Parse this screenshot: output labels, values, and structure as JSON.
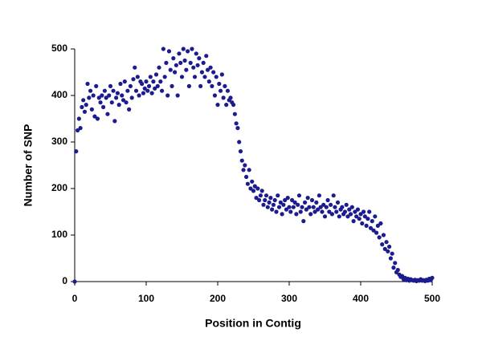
{
  "chart_data": {
    "type": "scatter",
    "x_label": "Position in Contig",
    "y_label": "Number of SNP",
    "xlim": [
      0,
      500
    ],
    "xticks": [
      0,
      100,
      200,
      300,
      400,
      500
    ],
    "ylim": [
      0,
      500
    ],
    "yticks": [
      0,
      100,
      200,
      300,
      400,
      500
    ],
    "color": "#1c1c8f",
    "x": [
      0,
      2,
      4,
      6,
      8,
      10,
      12,
      14,
      16,
      18,
      20,
      22,
      24,
      26,
      28,
      30,
      32,
      34,
      36,
      38,
      40,
      42,
      44,
      46,
      48,
      50,
      52,
      54,
      56,
      58,
      60,
      62,
      64,
      66,
      68,
      70,
      72,
      74,
      76,
      78,
      80,
      82,
      84,
      86,
      88,
      90,
      92,
      94,
      96,
      98,
      100,
      102,
      104,
      106,
      108,
      110,
      112,
      114,
      116,
      118,
      120,
      122,
      124,
      126,
      128,
      130,
      132,
      134,
      136,
      138,
      140,
      142,
      144,
      146,
      148,
      150,
      152,
      154,
      156,
      158,
      160,
      162,
      164,
      166,
      168,
      170,
      172,
      174,
      176,
      178,
      180,
      182,
      184,
      186,
      188,
      190,
      192,
      194,
      196,
      198,
      200,
      202,
      204,
      206,
      208,
      210,
      212,
      214,
      216,
      218,
      220,
      222,
      224,
      226,
      228,
      230,
      232,
      234,
      236,
      238,
      240,
      242,
      244,
      246,
      248,
      250,
      252,
      254,
      256,
      258,
      260,
      262,
      264,
      266,
      268,
      270,
      272,
      274,
      276,
      278,
      280,
      282,
      284,
      286,
      288,
      290,
      292,
      294,
      296,
      298,
      300,
      302,
      304,
      306,
      308,
      310,
      312,
      314,
      316,
      318,
      320,
      322,
      324,
      326,
      328,
      330,
      332,
      334,
      336,
      338,
      340,
      342,
      344,
      346,
      348,
      350,
      352,
      354,
      356,
      358,
      360,
      362,
      364,
      366,
      368,
      370,
      372,
      374,
      376,
      378,
      380,
      382,
      384,
      386,
      388,
      390,
      392,
      394,
      396,
      398,
      400,
      402,
      404,
      406,
      408,
      410,
      412,
      414,
      416,
      418,
      420,
      422,
      424,
      426,
      428,
      430,
      432,
      434,
      436,
      438,
      440,
      442,
      444,
      446,
      448,
      450,
      452,
      454,
      456,
      458,
      460,
      462,
      464,
      466,
      468,
      470,
      472,
      474,
      476,
      478,
      480,
      482,
      484,
      486,
      488,
      490,
      492,
      494,
      496,
      498,
      500
    ],
    "values": [
      0,
      280,
      325,
      350,
      330,
      375,
      390,
      365,
      380,
      425,
      395,
      410,
      370,
      400,
      355,
      420,
      350,
      395,
      385,
      400,
      375,
      410,
      395,
      360,
      400,
      420,
      385,
      410,
      345,
      395,
      405,
      380,
      425,
      400,
      390,
      430,
      385,
      410,
      370,
      420,
      395,
      435,
      460,
      410,
      440,
      400,
      430,
      425,
      405,
      415,
      430,
      410,
      420,
      440,
      405,
      430,
      415,
      445,
      420,
      460,
      430,
      410,
      500,
      440,
      470,
      400,
      495,
      455,
      420,
      480,
      450,
      465,
      400,
      490,
      470,
      440,
      500,
      475,
      455,
      495,
      420,
      470,
      500,
      460,
      440,
      490,
      465,
      480,
      420,
      450,
      470,
      440,
      485,
      455,
      430,
      460,
      420,
      450,
      400,
      440,
      380,
      425,
      410,
      445,
      395,
      420,
      380,
      410,
      390,
      395,
      385,
      380,
      360,
      340,
      330,
      300,
      280,
      260,
      240,
      250,
      225,
      210,
      240,
      200,
      215,
      195,
      205,
      180,
      200,
      175,
      185,
      195,
      165,
      175,
      185,
      160,
      170,
      180,
      155,
      165,
      175,
      150,
      185,
      160,
      170,
      145,
      165,
      175,
      155,
      180,
      160,
      150,
      175,
      160,
      170,
      145,
      165,
      185,
      150,
      160,
      130,
      170,
      155,
      180,
      160,
      145,
      175,
      160,
      150,
      170,
      155,
      185,
      160,
      150,
      165,
      140,
      160,
      175,
      150,
      165,
      145,
      185,
      160,
      150,
      170,
      140,
      155,
      160,
      145,
      150,
      165,
      140,
      155,
      145,
      160,
      130,
      150,
      140,
      155,
      135,
      145,
      125,
      150,
      140,
      120,
      135,
      150,
      115,
      130,
      110,
      140,
      105,
      120,
      95,
      125,
      80,
      100,
      70,
      85,
      65,
      75,
      50,
      60,
      30,
      40,
      20,
      25,
      15,
      10,
      12,
      5,
      8,
      3,
      6,
      2,
      5,
      3,
      2,
      4,
      1,
      3,
      2,
      5,
      2,
      3,
      1,
      4,
      2,
      6,
      3,
      8
    ]
  }
}
